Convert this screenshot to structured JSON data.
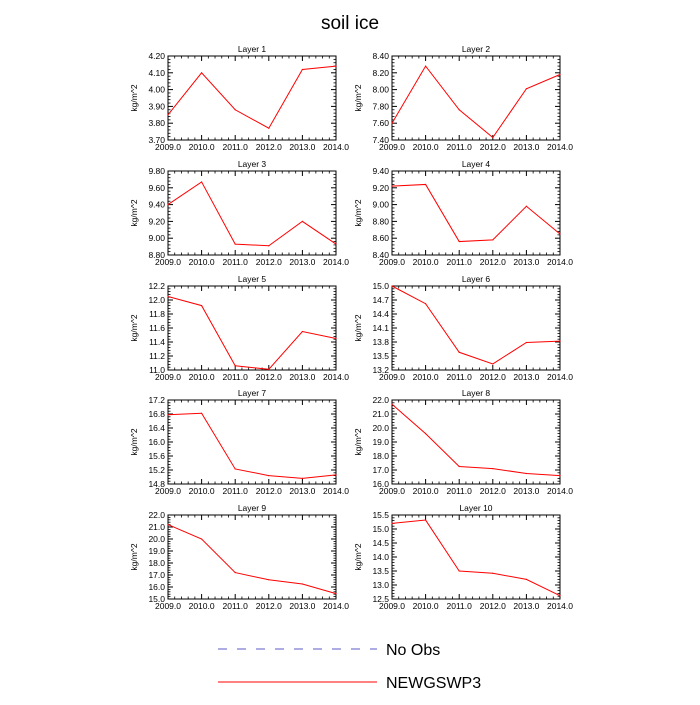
{
  "figure": {
    "title": "soil ice"
  },
  "legend": {
    "items": [
      {
        "label": "No Obs",
        "color": "#5b5bc8",
        "style": "dashed"
      },
      {
        "label": "NEWGSWP3",
        "color": "#ff0000",
        "style": "solid"
      }
    ]
  },
  "chart_data": [
    {
      "type": "line",
      "title": "Layer 1",
      "ylabel": "kg/m^2",
      "x": [
        2009,
        2010,
        2011,
        2012,
        2013,
        2014
      ],
      "xticks": [
        "2009.0",
        "2010.0",
        "2011.0",
        "2012.0",
        "2013.0",
        "2014.0"
      ],
      "ylim": [
        3.7,
        4.2
      ],
      "yticks": [
        "3.70",
        "3.80",
        "3.90",
        "4.00",
        "4.10",
        "4.20"
      ],
      "series": [
        {
          "name": "NEWGSWP3",
          "color": "#ff0000",
          "values": [
            3.85,
            4.1,
            3.88,
            3.77,
            4.12,
            4.14
          ]
        }
      ]
    },
    {
      "type": "line",
      "title": "Layer 2",
      "ylabel": "kg/m^2",
      "x": [
        2009,
        2010,
        2011,
        2012,
        2013,
        2014
      ],
      "xticks": [
        "2009.0",
        "2010.0",
        "2011.0",
        "2012.0",
        "2013.0",
        "2014.0"
      ],
      "ylim": [
        7.4,
        8.4
      ],
      "yticks": [
        "7.40",
        "7.60",
        "7.80",
        "8.00",
        "8.20",
        "8.40"
      ],
      "series": [
        {
          "name": "NEWGSWP3",
          "color": "#ff0000",
          "values": [
            7.6,
            8.28,
            7.76,
            7.43,
            8.01,
            8.18
          ]
        }
      ]
    },
    {
      "type": "line",
      "title": "Layer 3",
      "ylabel": "kg/m^2",
      "x": [
        2009,
        2010,
        2011,
        2012,
        2013,
        2014
      ],
      "xticks": [
        "2009.0",
        "2010.0",
        "2011.0",
        "2012.0",
        "2013.0",
        "2014.0"
      ],
      "ylim": [
        8.8,
        9.8
      ],
      "yticks": [
        "8.80",
        "9.00",
        "9.20",
        "9.40",
        "9.60",
        "9.80"
      ],
      "series": [
        {
          "name": "NEWGSWP3",
          "color": "#ff0000",
          "values": [
            9.4,
            9.67,
            8.93,
            8.91,
            9.2,
            8.93
          ]
        }
      ]
    },
    {
      "type": "line",
      "title": "Layer 4",
      "ylabel": "kg/m^2",
      "x": [
        2009,
        2010,
        2011,
        2012,
        2013,
        2014
      ],
      "xticks": [
        "2009.0",
        "2010.0",
        "2011.0",
        "2012.0",
        "2013.0",
        "2014.0"
      ],
      "ylim": [
        8.4,
        9.4
      ],
      "yticks": [
        "8.40",
        "8.60",
        "8.80",
        "9.00",
        "9.20",
        "9.40"
      ],
      "series": [
        {
          "name": "NEWGSWP3",
          "color": "#ff0000",
          "values": [
            9.22,
            9.24,
            8.56,
            8.58,
            8.98,
            8.65
          ]
        }
      ]
    },
    {
      "type": "line",
      "title": "Layer 5",
      "ylabel": "kg/m^2",
      "x": [
        2009,
        2010,
        2011,
        2012,
        2013,
        2014
      ],
      "xticks": [
        "2009.0",
        "2010.0",
        "2011.0",
        "2012.0",
        "2013.0",
        "2014.0"
      ],
      "ylim": [
        11.0,
        12.2
      ],
      "yticks": [
        "11.0",
        "11.2",
        "11.4",
        "11.6",
        "11.8",
        "12.0",
        "12.2"
      ],
      "series": [
        {
          "name": "NEWGSWP3",
          "color": "#ff0000",
          "values": [
            12.05,
            11.92,
            11.06,
            11.01,
            11.55,
            11.45
          ]
        }
      ]
    },
    {
      "type": "line",
      "title": "Layer 6",
      "ylabel": "kg/m^2",
      "x": [
        2009,
        2010,
        2011,
        2012,
        2013,
        2014
      ],
      "xticks": [
        "2009.0",
        "2010.0",
        "2011.0",
        "2012.0",
        "2013.0",
        "2014.0"
      ],
      "ylim": [
        13.2,
        15.0
      ],
      "yticks": [
        "13.2",
        "13.5",
        "13.8",
        "14.1",
        "14.4",
        "14.7",
        "15.0"
      ],
      "series": [
        {
          "name": "NEWGSWP3",
          "color": "#ff0000",
          "values": [
            15.0,
            14.62,
            13.58,
            13.33,
            13.79,
            13.82
          ]
        }
      ]
    },
    {
      "type": "line",
      "title": "Layer 7",
      "ylabel": "kg/m^2",
      "x": [
        2009,
        2010,
        2011,
        2012,
        2013,
        2014
      ],
      "xticks": [
        "2009.0",
        "2010.0",
        "2011.0",
        "2012.0",
        "2013.0",
        "2014.0"
      ],
      "ylim": [
        14.8,
        17.2
      ],
      "yticks": [
        "14.8",
        "15.2",
        "15.6",
        "16.0",
        "16.4",
        "16.8",
        "17.2"
      ],
      "series": [
        {
          "name": "NEWGSWP3",
          "color": "#ff0000",
          "values": [
            16.78,
            16.82,
            15.23,
            15.04,
            14.96,
            15.06
          ]
        }
      ]
    },
    {
      "type": "line",
      "title": "Layer 8",
      "ylabel": "kg/m^2",
      "x": [
        2009,
        2010,
        2011,
        2012,
        2013,
        2014
      ],
      "xticks": [
        "2009.0",
        "2010.0",
        "2011.0",
        "2012.0",
        "2013.0",
        "2014.0"
      ],
      "ylim": [
        16.0,
        22.0
      ],
      "yticks": [
        "16.0",
        "17.0",
        "18.0",
        "19.0",
        "20.0",
        "21.0",
        "22.0"
      ],
      "series": [
        {
          "name": "NEWGSWP3",
          "color": "#ff0000",
          "values": [
            21.7,
            19.6,
            17.25,
            17.1,
            16.75,
            16.6
          ]
        }
      ]
    },
    {
      "type": "line",
      "title": "Layer 9",
      "ylabel": "kg/m^2",
      "x": [
        2009,
        2010,
        2011,
        2012,
        2013,
        2014
      ],
      "xticks": [
        "2009.0",
        "2010.0",
        "2011.0",
        "2012.0",
        "2013.0",
        "2014.0"
      ],
      "ylim": [
        15.0,
        22.0
      ],
      "yticks": [
        "15.0",
        "16.0",
        "17.0",
        "18.0",
        "19.0",
        "20.0",
        "21.0",
        "22.0"
      ],
      "series": [
        {
          "name": "NEWGSWP3",
          "color": "#ff0000",
          "values": [
            21.2,
            20.0,
            17.2,
            16.6,
            16.25,
            15.45
          ]
        }
      ]
    },
    {
      "type": "line",
      "title": "Layer 10",
      "ylabel": "kg/m^2",
      "x": [
        2009,
        2010,
        2011,
        2012,
        2013,
        2014
      ],
      "xticks": [
        "2009.0",
        "2010.0",
        "2011.0",
        "2012.0",
        "2013.0",
        "2014.0"
      ],
      "ylim": [
        12.5,
        15.5
      ],
      "yticks": [
        "12.5",
        "13.0",
        "13.5",
        "14.0",
        "14.5",
        "15.0",
        "15.5"
      ],
      "series": [
        {
          "name": "NEWGSWP3",
          "color": "#ff0000",
          "values": [
            15.2,
            15.32,
            13.5,
            13.42,
            13.2,
            12.62
          ]
        }
      ]
    }
  ]
}
